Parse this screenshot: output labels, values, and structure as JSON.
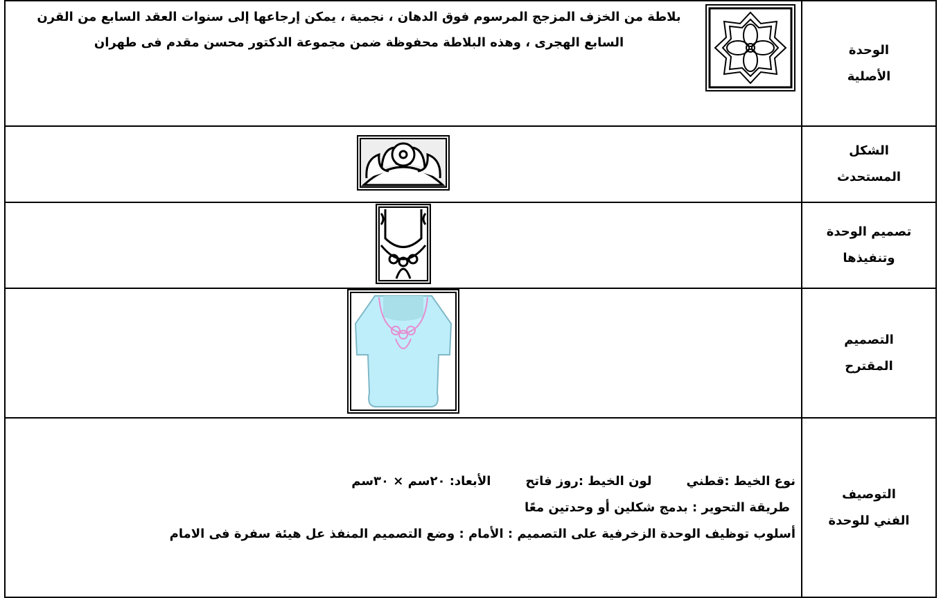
{
  "table": {
    "rows": [
      {
        "label": [
          "الوحدة",
          "الأصلية"
        ],
        "text": "بلاطة من الخزف المزجج المرسوم فوق الدهان ، نجمية ، يمكن إرجاعها إلى سنوات العقد السابع من القرن السابع الهجرى ، وهذه البلاطة محفوظة ضمن مجموعة الدكتور محسن مقدم فى طهران"
      },
      {
        "label": [
          "الشكل",
          "المستحدث"
        ]
      },
      {
        "label": [
          "تصميم الوحدة",
          "وتنفيذها"
        ]
      },
      {
        "label": [
          "التصميم",
          "المقترح"
        ]
      },
      {
        "label": [
          "التوصيف",
          "الفني للوحدة"
        ],
        "specs": [
          "نوع الخيط :قطني",
          "لون الخيط :روز فاتح",
          "الأبعاد: ٢٠سم × ٣٠سم"
        ],
        "method": "طريقة التحوير : بدمج شكلين أو وحدتين معًا",
        "placement": "أسلوب توظيف الوحدة الزخرفية على التصميم : الأمام : وضع التصميم المنفذ عل هيئة سفرة فى الامام"
      }
    ]
  }
}
